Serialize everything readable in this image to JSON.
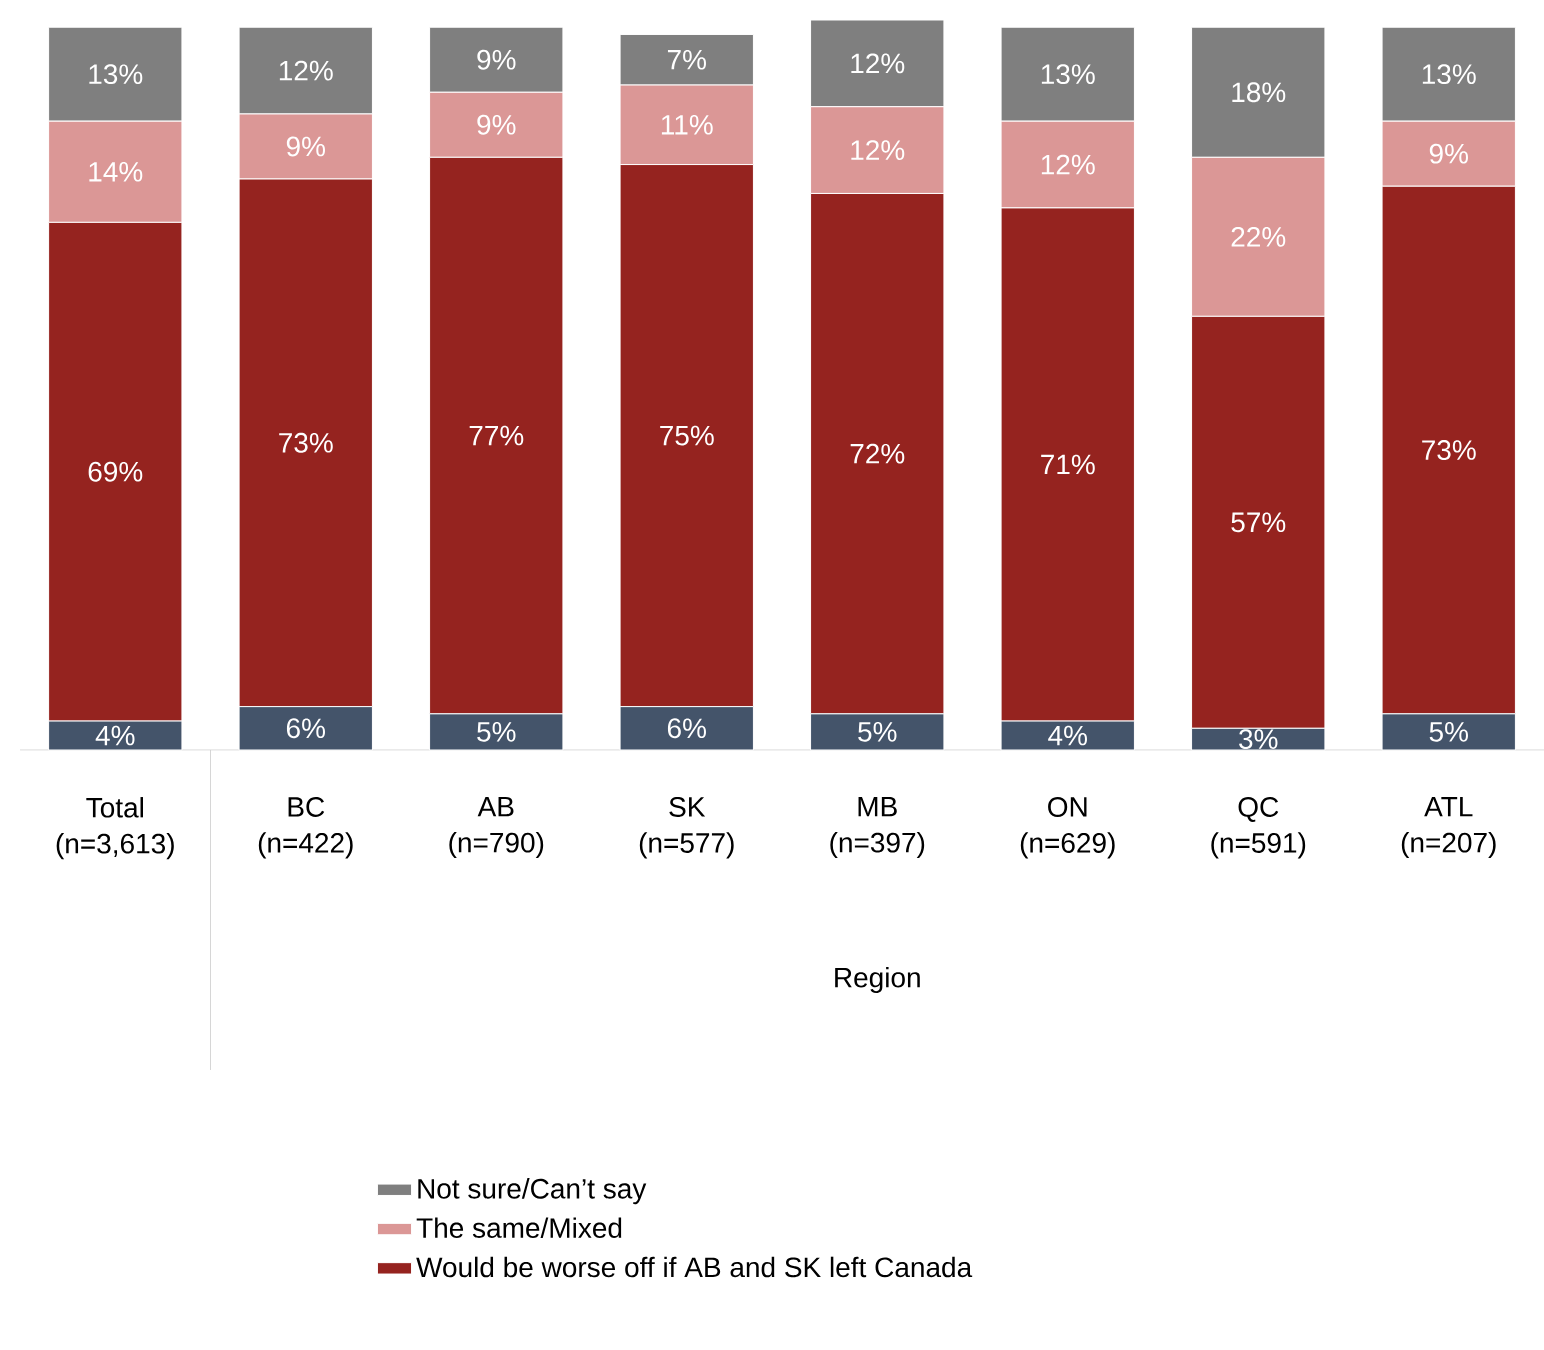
{
  "chart_data": {
    "type": "bar",
    "stacked": true,
    "xlabel": "Region",
    "legend": "bottom",
    "categories": [
      "Total (n=3,613)",
      "BC (n=422)",
      "AB (n=790)",
      "SK (n=577)",
      "MB (n=397)",
      "ON (n=629)",
      "QC (n=591)",
      "ATL (n=207)"
    ],
    "series": [
      {
        "color": "#44546a",
        "values": [
          4,
          6,
          5,
          6,
          5,
          4,
          3,
          5
        ],
        "value_labels": [
          "4%",
          "6%",
          "5%",
          "6%",
          "5%",
          "4%",
          "3%",
          "5%"
        ]
      },
      {
        "name": "Would be worse off if AB and SK left Canada",
        "color": "#95231f",
        "values": [
          69,
          73,
          77,
          75,
          72,
          71,
          57,
          73
        ],
        "value_labels": [
          "69%",
          "73%",
          "77%",
          "75%",
          "72%",
          "71%",
          "57%",
          "73%"
        ]
      },
      {
        "name": "The same/Mixed",
        "color": "#db9796",
        "values": [
          14,
          9,
          9,
          11,
          12,
          12,
          22,
          9
        ],
        "value_labels": [
          "14%",
          "9%",
          "9%",
          "11%",
          "12%",
          "12%",
          "22%",
          "9%"
        ]
      },
      {
        "name": "Not sure/Can’t say",
        "color": "#7f7f7f",
        "values": [
          13,
          12,
          9,
          7,
          12,
          13,
          18,
          13
        ],
        "value_labels": [
          "13%",
          "12%",
          "9%",
          "7%",
          "12%",
          "13%",
          "18%",
          "13%"
        ]
      }
    ]
  }
}
